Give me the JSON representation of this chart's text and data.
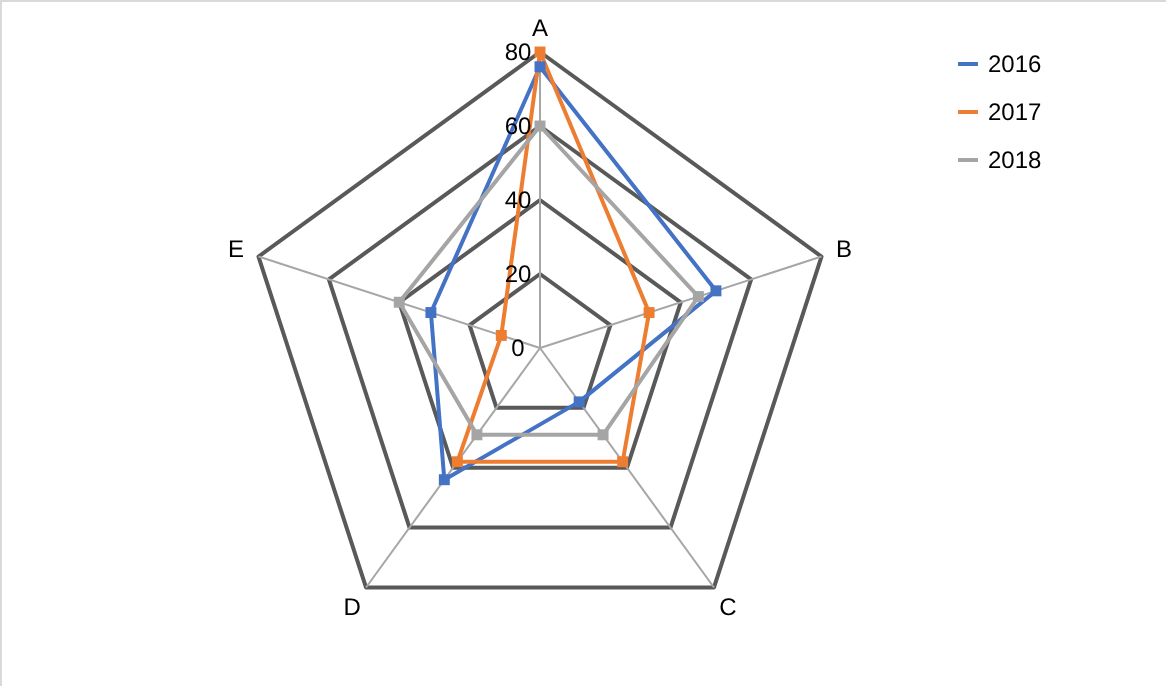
{
  "chart_data": {
    "type": "radar",
    "categories": [
      "A",
      "B",
      "C",
      "D",
      "E"
    ],
    "series": [
      {
        "name": "2016",
        "color": "#4472c4",
        "values": [
          76,
          50,
          18,
          44,
          31
        ]
      },
      {
        "name": "2017",
        "color": "#ed7d31",
        "values": [
          80,
          31,
          38,
          38,
          11
        ]
      },
      {
        "name": "2018",
        "color": "#a5a5a5",
        "values": [
          60,
          45,
          29,
          29,
          40
        ]
      }
    ],
    "ylim": [
      0,
      80
    ],
    "yticks": [
      0,
      20,
      40,
      60,
      80
    ],
    "grid": true,
    "legend": "right",
    "marker": "square",
    "line_style": "solid"
  }
}
